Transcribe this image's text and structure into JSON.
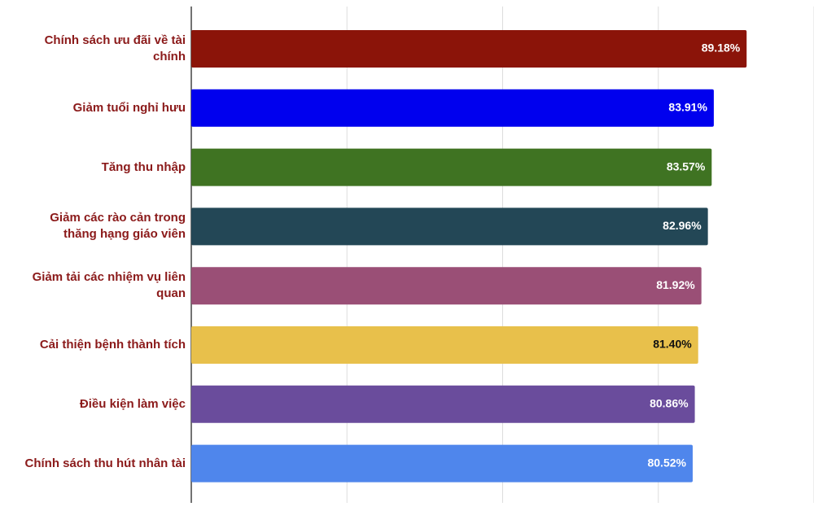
{
  "chart_data": {
    "type": "bar",
    "orientation": "horizontal",
    "categories": [
      "Chính sách ưu đãi về tài chính",
      "Giảm tuổi nghỉ hưu",
      "Tăng thu nhập",
      "Giảm các rào cản trong thăng hạng giáo viên",
      "Giảm tải các nhiệm vụ liên quan",
      "Cải thiện bệnh thành tích",
      "Điều kiện làm việc",
      "Chính sách thu hút nhân tài"
    ],
    "values": [
      89.18,
      83.91,
      83.57,
      82.96,
      81.92,
      81.4,
      80.86,
      80.52
    ],
    "value_labels": [
      "89.18%",
      "83.91%",
      "83.57%",
      "82.96%",
      "81.92%",
      "81.40%",
      "80.86%",
      "80.52%"
    ],
    "colors": [
      "#8b1409",
      "#0000ee",
      "#3f7322",
      "#234756",
      "#9a4f76",
      "#e8c04b",
      "#6a4c9c",
      "#4f86ec"
    ],
    "xlim": [
      0,
      100
    ],
    "xticks": [
      0,
      25,
      50,
      75,
      100
    ],
    "grid": true
  }
}
